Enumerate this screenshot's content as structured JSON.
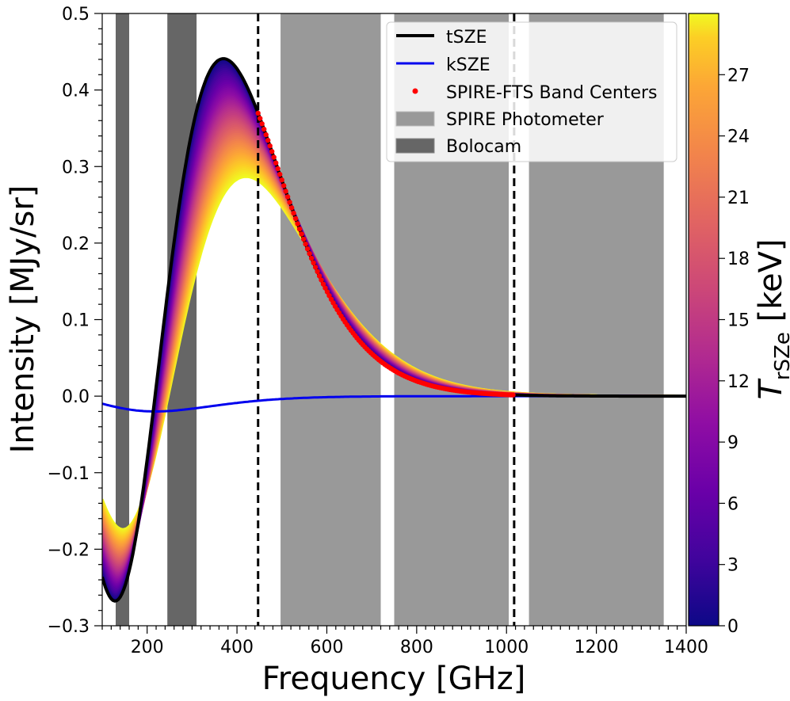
{
  "chart_data": {
    "type": "line",
    "xlabel": "Frequency [GHz]",
    "ylabel": "Intensity [MJy/sr]",
    "xlim": [
      100,
      1400
    ],
    "ylim": [
      -0.3,
      0.5
    ],
    "xticks": [
      "200",
      "400",
      "600",
      "800",
      "1000",
      "1200",
      "1400"
    ],
    "yticks": [
      "−0.3",
      "−0.2",
      "−0.1",
      "0.0",
      "0.1",
      "0.2",
      "0.3",
      "0.4",
      "0.5"
    ],
    "legend_position": "top-right",
    "legend": [
      {
        "label": "tSZE",
        "kind": "line",
        "color": "#000000"
      },
      {
        "label": "kSZE",
        "kind": "line",
        "color": "#0000ee"
      },
      {
        "label": "SPIRE-FTS Band Centers",
        "kind": "dot",
        "color": "#ff0000"
      },
      {
        "label": "SPIRE Photometer",
        "kind": "patch",
        "color": "#999999"
      },
      {
        "label": "Bolocam",
        "kind": "patch",
        "color": "#666666"
      }
    ],
    "bands": {
      "bolocam": [
        [
          130,
          160
        ],
        [
          245,
          310
        ]
      ],
      "spire_photometer": [
        [
          497,
          720
        ],
        [
          750,
          1005
        ],
        [
          1050,
          1350
        ]
      ]
    },
    "vlines": [
      447,
      1017
    ],
    "fts_range": [
      447,
      1017
    ],
    "series": [
      {
        "name": "tSZE",
        "color": "#000000",
        "amplitude": 0.441,
        "peak_ghz": 370
      },
      {
        "name": "kSZE",
        "color": "#0000ee",
        "amplitude": -0.02,
        "min_ghz": 217
      }
    ],
    "rsz_family": {
      "t_min_kev": 0,
      "t_max_kev": 30,
      "n_curves": 60,
      "high_t_peak": 0.31,
      "high_t_peak_ghz": 410
    },
    "colorbar": {
      "label": "T",
      "label_sub": "rSZe",
      "label_unit": " [keV]",
      "ticks": [
        "0",
        "3",
        "6",
        "9",
        "12",
        "15",
        "18",
        "21",
        "24",
        "27"
      ],
      "range": [
        0,
        30
      ],
      "colormap": "plasma"
    }
  }
}
